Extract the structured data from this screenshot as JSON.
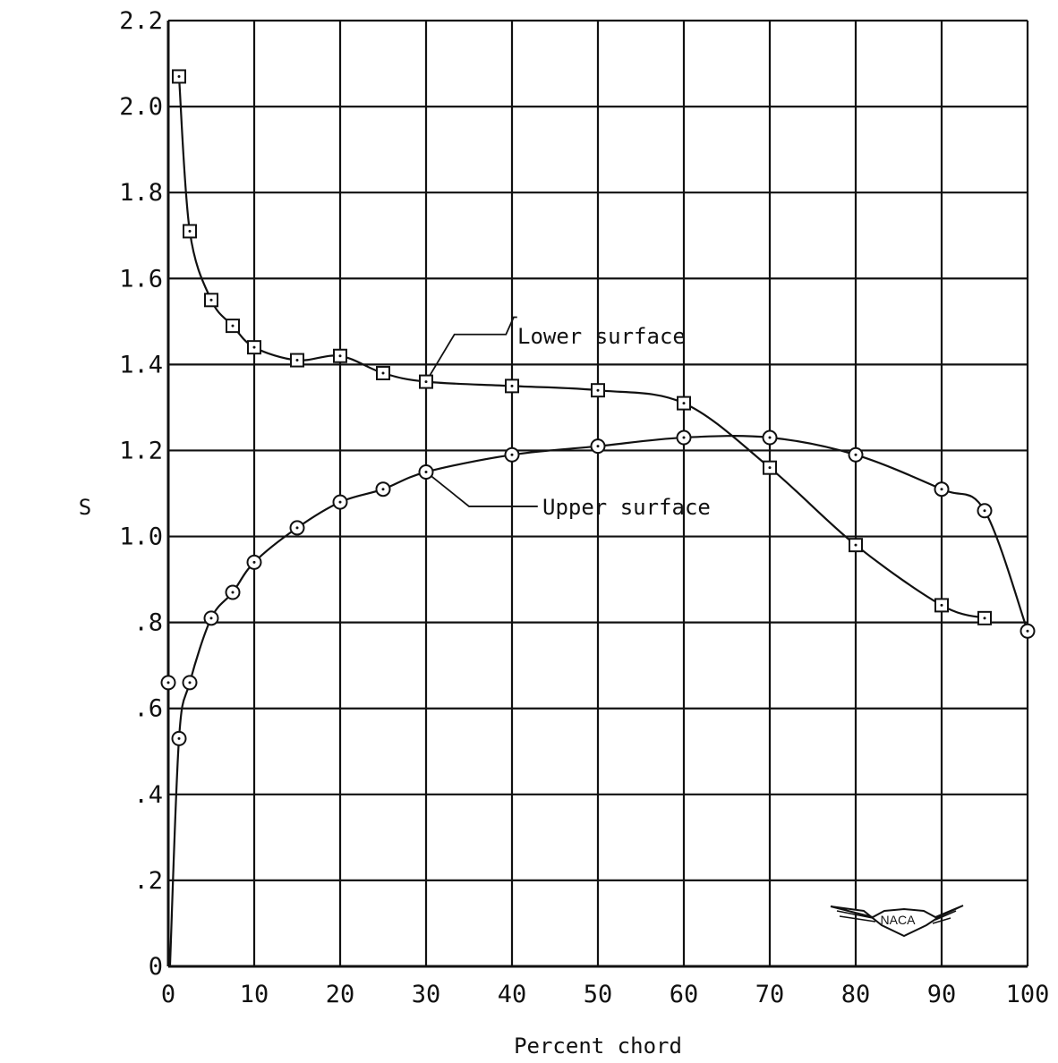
{
  "chart_data": {
    "type": "scatter",
    "xlabel": "Percent chord",
    "ylabel": "S",
    "xlim": [
      0,
      100
    ],
    "ylim": [
      0,
      2.2
    ],
    "grid": true,
    "x_ticks": [
      0,
      10,
      20,
      30,
      40,
      50,
      60,
      70,
      80,
      90,
      100
    ],
    "x_tick_labels": [
      "0",
      "10",
      "20",
      "30",
      "40",
      "50",
      "60",
      "70",
      "80",
      "90",
      "100"
    ],
    "y_ticks": [
      0,
      0.2,
      0.4,
      0.6,
      0.8,
      1.0,
      1.2,
      1.4,
      1.6,
      1.8,
      2.0,
      2.2
    ],
    "y_tick_labels": [
      "0",
      ".2",
      ".4",
      ".6",
      ".8",
      "1.0",
      "1.2",
      "1.4",
      "1.6",
      "1.8",
      "2.0",
      "2.2"
    ],
    "series": [
      {
        "name": "Lower surface",
        "marker": "square",
        "x": [
          1.25,
          2.5,
          5,
          7.5,
          10,
          15,
          20,
          25,
          30,
          40,
          50,
          60,
          70,
          80,
          90,
          95
        ],
        "y": [
          2.07,
          1.71,
          1.55,
          1.49,
          1.44,
          1.41,
          1.42,
          1.38,
          1.36,
          1.35,
          1.34,
          1.31,
          1.16,
          0.98,
          0.84,
          0.81
        ]
      },
      {
        "name": "Upper surface",
        "marker": "circle",
        "x": [
          0,
          1.25,
          2.5,
          5,
          7.5,
          10,
          15,
          20,
          25,
          30,
          40,
          50,
          60,
          70,
          80,
          90,
          95,
          100
        ],
        "y": [
          0.66,
          0.53,
          0.66,
          0.81,
          0.87,
          0.94,
          1.02,
          1.08,
          1.11,
          1.15,
          1.19,
          1.21,
          1.23,
          1.23,
          1.19,
          1.11,
          1.06,
          0.78
        ]
      }
    ],
    "annotations": [
      "Lower surface",
      "Upper surface"
    ],
    "logo": "NACA"
  }
}
